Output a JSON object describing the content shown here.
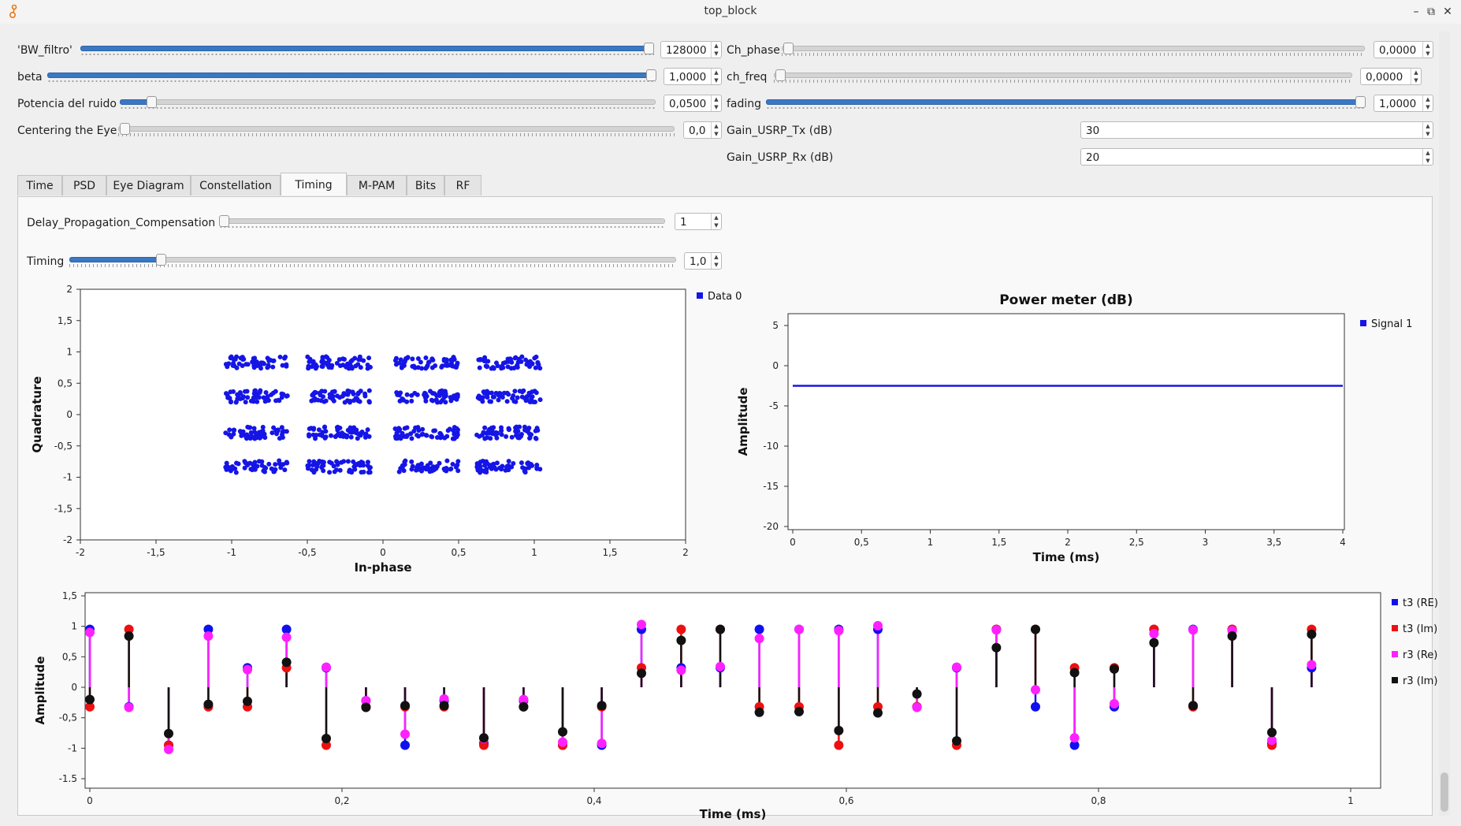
{
  "window": {
    "title": "top_block"
  },
  "controls": {
    "bw_filtro": {
      "label": "'BW_filtro'",
      "value": "128000",
      "level": 1.0
    },
    "beta": {
      "label": "beta",
      "value": "1,0000",
      "level": 1.0
    },
    "potencia": {
      "label": "Potencia del ruido",
      "value": "0,0500",
      "level": 0.05
    },
    "centering": {
      "label": "Centering the Eye",
      "value": "0,0",
      "level": 0.0
    },
    "ch_phase": {
      "label": "Ch_phase",
      "value": "0,0000",
      "level": 0.0
    },
    "ch_freq": {
      "label": "ch_freq",
      "value": "0,0000",
      "level": 0.0
    },
    "fading": {
      "label": "fading",
      "value": "1,0000",
      "level": 1.0
    },
    "gain_tx": {
      "label": "Gain_USRP_Tx (dB)",
      "value": "30"
    },
    "gain_rx": {
      "label": "Gain_USRP_Rx (dB)",
      "value": "20"
    }
  },
  "tabs": [
    "Time",
    "PSD",
    "Eye Diagram",
    "Constellation",
    "Timing",
    "M-PAM",
    "Bits",
    "RF"
  ],
  "active_tab": "Timing",
  "timing_tab": {
    "delay": {
      "label": "Delay_Propagation_Compensation",
      "value": "1",
      "level": 0.0
    },
    "timing": {
      "label": "Timing",
      "value": "1,0",
      "level": 0.15
    }
  },
  "chart_data": [
    {
      "type": "scatter",
      "xlabel": "In-phase",
      "ylabel": "Quadrature",
      "xlim": [
        -2,
        2
      ],
      "ylim": [
        -2,
        2
      ],
      "x_ticks": [
        "-2",
        "-1,5",
        "-1",
        "-0,5",
        "0",
        "0,5",
        "1",
        "1,5",
        "2"
      ],
      "y_ticks": [
        "2",
        "1,5",
        "1",
        "0,5",
        "0",
        "-0,5",
        "-1",
        "-1,5",
        "-2"
      ],
      "legend": "top-right",
      "series": [
        {
          "name": "Data 0",
          "color": "#1515e6",
          "cluster_centers_x": [
            -0.83,
            -0.29,
            0.29,
            0.83
          ],
          "cluster_centers_y": [
            0.83,
            0.29,
            -0.29,
            -0.83
          ],
          "spread": 0.08
        }
      ]
    },
    {
      "type": "line",
      "title": "Power meter (dB)",
      "xlabel": "Time (ms)",
      "ylabel": "Amplitude",
      "xlim": [
        0,
        4
      ],
      "ylim": [
        -20,
        5
      ],
      "x_ticks": [
        "0",
        "0,5",
        "1",
        "1,5",
        "2",
        "2,5",
        "3",
        "3,5",
        "4"
      ],
      "y_ticks": [
        "5",
        "0",
        "-5",
        "-10",
        "-15",
        "-20"
      ],
      "legend": "top-right",
      "series": [
        {
          "name": "Signal 1",
          "color": "#1515e6",
          "x": [
            0,
            4
          ],
          "values": [
            -2.5,
            -2.5
          ]
        }
      ]
    },
    {
      "type": "stem",
      "xlabel": "Time (ms)",
      "ylabel": "Amplitude",
      "xlim": [
        0,
        1
      ],
      "ylim": [
        -1.5,
        1.5
      ],
      "x_ticks": [
        "0",
        "0,2",
        "0,4",
        "0,6",
        "0,8",
        "1"
      ],
      "y_ticks": [
        "1,5",
        "1",
        "0,5",
        "0",
        "-0,5",
        "-1",
        "-1.5"
      ],
      "legend": "right",
      "x": [
        0.0,
        0.031,
        0.0625,
        0.094,
        0.125,
        0.156,
        0.1875,
        0.219,
        0.25,
        0.281,
        0.3125,
        0.344,
        0.375,
        0.406,
        0.4375,
        0.469,
        0.5,
        0.531,
        0.5625,
        0.594,
        0.625,
        0.656,
        0.6875,
        0.719,
        0.75,
        0.781,
        0.8125,
        0.844,
        0.875,
        0.906,
        0.9375,
        0.969
      ],
      "series": [
        {
          "name": "t3 (RE)",
          "color": "#1010ee",
          "values": [
            0.95,
            -0.32,
            -0.95,
            0.95,
            0.32,
            0.95,
            0.32,
            -0.22,
            -0.95,
            -0.22,
            -0.92,
            -0.22,
            -0.95,
            -0.95,
            0.95,
            0.32,
            0.32,
            0.95,
            0.95,
            0.95,
            0.95,
            -0.32,
            0.32,
            0.95,
            -0.32,
            -0.95,
            -0.32,
            0.95,
            0.95,
            0.95,
            -0.92,
            0.32
          ]
        },
        {
          "name": "t3 (Im)",
          "color": "#ee1010",
          "values": [
            -0.32,
            0.95,
            -0.95,
            -0.32,
            -0.32,
            0.32,
            -0.95,
            -0.32,
            -0.32,
            -0.32,
            -0.95,
            -0.32,
            -0.95,
            -0.32,
            0.32,
            0.95,
            0.95,
            -0.32,
            -0.32,
            -0.95,
            -0.32,
            -0.32,
            -0.95,
            0.95,
            0.95,
            0.32,
            0.32,
            0.95,
            -0.32,
            0.95,
            -0.95,
            0.95
          ]
        },
        {
          "name": "r3 (Re)",
          "color": "#ff20ff",
          "values": [
            0.9,
            -0.33,
            -1.02,
            0.84,
            0.29,
            0.82,
            0.33,
            -0.22,
            -0.77,
            -0.19,
            -0.84,
            -0.2,
            -0.9,
            -0.92,
            1.03,
            0.28,
            0.34,
            0.8,
            0.95,
            0.93,
            1.01,
            -0.33,
            0.33,
            0.94,
            -0.04,
            -0.83,
            -0.27,
            0.88,
            0.94,
            0.93,
            -0.87,
            0.37
          ]
        },
        {
          "name": "r3 (Im)",
          "color": "#111111",
          "values": [
            -0.2,
            0.84,
            -0.76,
            -0.28,
            -0.23,
            0.41,
            -0.84,
            -0.33,
            -0.3,
            -0.3,
            -0.83,
            -0.32,
            -0.73,
            -0.3,
            0.23,
            0.77,
            0.95,
            -0.41,
            -0.4,
            -0.71,
            -0.42,
            -0.11,
            -0.88,
            0.65,
            0.95,
            0.24,
            0.3,
            0.73,
            -0.3,
            0.84,
            -0.74,
            0.87
          ]
        }
      ]
    }
  ]
}
